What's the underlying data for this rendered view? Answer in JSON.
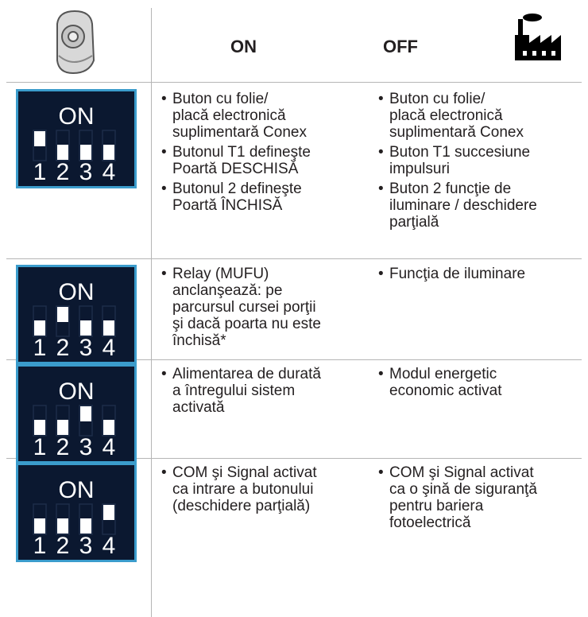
{
  "header": {
    "on": "ON",
    "off": "OFF"
  },
  "rows": [
    {
      "dip": {
        "label": "ON",
        "numbers": [
          "1",
          "2",
          "3",
          "4"
        ]
      },
      "on": [
        "Buton cu folie/\nplacă electronică\nsuplimentară Conex",
        "Butonul T1 defineşte\nPoartă DESCHISĂ",
        "Butonul 2 defineşte\nPoartă ÎNCHISĂ"
      ],
      "off": [
        "Buton cu folie/\nplacă electronică\nsuplimentară Conex",
        "Buton T1 succesiune\nimpulsuri",
        "Buton 2 funcţie de\niluminare / deschidere\nparţială"
      ]
    },
    {
      "dip": {
        "label": "ON",
        "numbers": [
          "1",
          "2",
          "3",
          "4"
        ]
      },
      "on": [
        "Relay (MUFU)\nanclanşează: pe\nparcursul cursei porţii\nşi dacă poarta nu este\nînchisă*"
      ],
      "off": [
        "Funcţia de iluminare"
      ]
    },
    {
      "dip": {
        "label": "ON",
        "numbers": [
          "1",
          "2",
          "3",
          "4"
        ]
      },
      "on": [
        "Alimentarea de durată\na întregului sistem\nactivată"
      ],
      "off": [
        "Modul energetic\neconomic activat"
      ]
    },
    {
      "dip": {
        "label": "ON",
        "numbers": [
          "1",
          "2",
          "3",
          "4"
        ]
      },
      "on": [
        "COM şi Signal activat\nca intrare a butonului\n(deschidere parţială)"
      ],
      "off": [
        "COM şi Signal activat\nca o şină de siguranţă\npentru bariera\nfotoelectrică"
      ]
    }
  ]
}
